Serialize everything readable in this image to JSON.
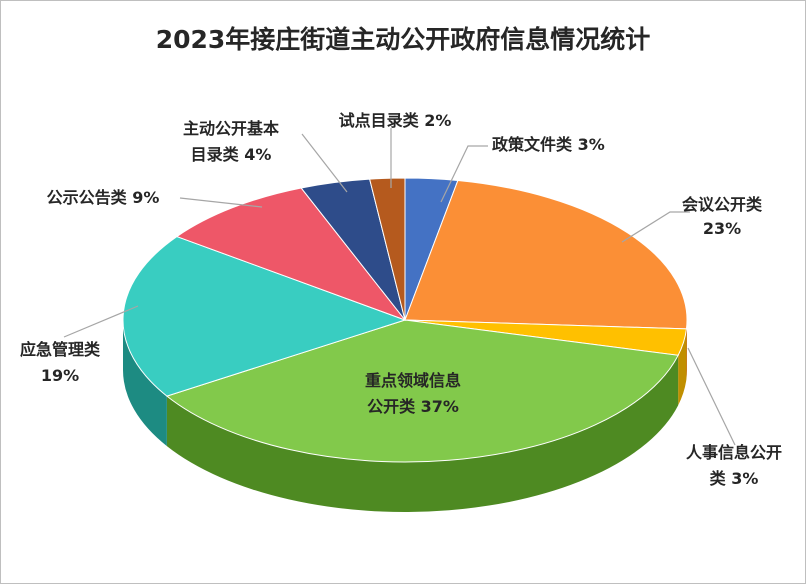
{
  "chart_data": {
    "type": "pie",
    "title": "2023年接庄街道主动公开政府信息情况统计",
    "slices": [
      {
        "label": "政策文件类 3%",
        "value": 3,
        "color": "#4472C4",
        "side": "#2f5597"
      },
      {
        "label": "会议公开类 23%",
        "value": 23,
        "color": "#FB8F36",
        "side": "#c9621a"
      },
      {
        "label": "人事信息公开类 3%",
        "value": 3,
        "color": "#FFC000",
        "side": "#c08f00"
      },
      {
        "label": "重点领域信息公开类 37%",
        "value": 37,
        "color": "#82C94B",
        "side": "#4e8a22"
      },
      {
        "label": "应急管理类 19%",
        "value": 19,
        "color": "#39CDC1",
        "side": "#1d8b82"
      },
      {
        "label": "公示公告类 9%",
        "value": 9,
        "color": "#EE5768",
        "side": "#a93040"
      },
      {
        "label": "主动公开基本目录类 4%",
        "value": 4,
        "color": "#2E4C8A",
        "side": "#1c2f57"
      },
      {
        "label": "试点目录类 2%",
        "value": 2,
        "color": "#B55A1E",
        "side": "#7a3a10"
      }
    ]
  },
  "labels": {
    "policy": "政策文件类 3%",
    "meeting_1": "会议公开类",
    "meeting_2": "23%",
    "personnel_1": "人事信息公开",
    "personnel_2": "类 3%",
    "key_1": "重点领域信息",
    "key_2": "公开类 37%",
    "emergency_1": "应急管理类",
    "emergency_2": "19%",
    "notice": "公示公告类 9%",
    "catalog_1": "主动公开基本",
    "catalog_2": "目录类 4%",
    "pilot": "试点目录类 2%"
  }
}
